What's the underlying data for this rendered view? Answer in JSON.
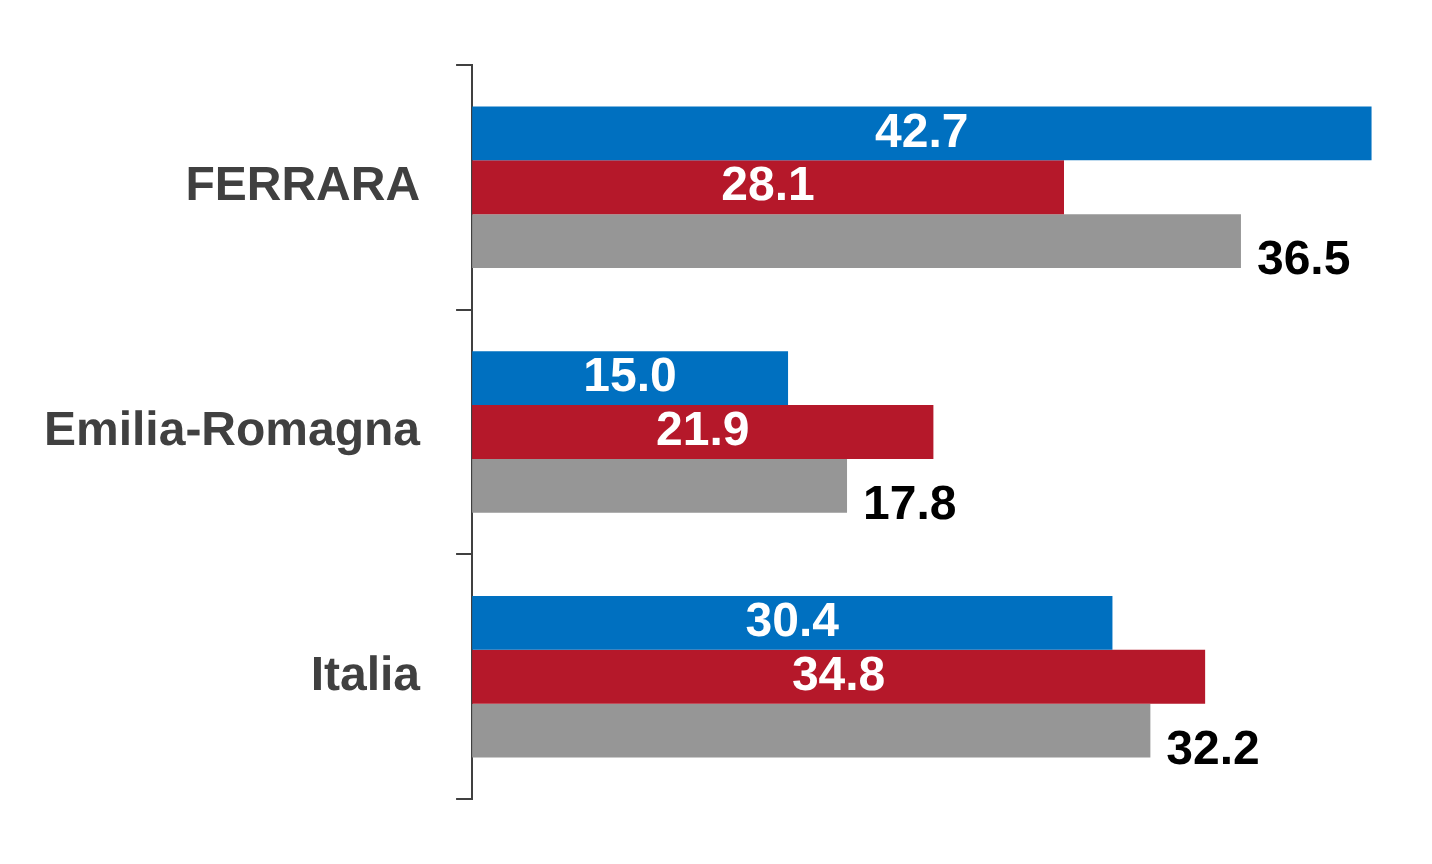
{
  "chart_data": {
    "type": "bar",
    "orientation": "horizontal",
    "categories": [
      "FERRARA",
      "Emilia-Romagna",
      "Italia"
    ],
    "series": [
      {
        "color": "#0070c0",
        "values": [
          42.7,
          15,
          30.4
        ],
        "value_labels": [
          "42.7",
          "15.0",
          "30.4"
        ]
      },
      {
        "color": "#b5182a",
        "values": [
          28.1,
          21.9,
          34.8
        ],
        "value_labels": [
          "28.1",
          "21.9",
          "34.8"
        ]
      },
      {
        "color": "#969696",
        "values": [
          36.5,
          17.8,
          32.2
        ],
        "value_labels": [
          "36.5",
          "17.8",
          "32.2"
        ]
      }
    ],
    "legend": false,
    "tick_labels": "y"
  }
}
